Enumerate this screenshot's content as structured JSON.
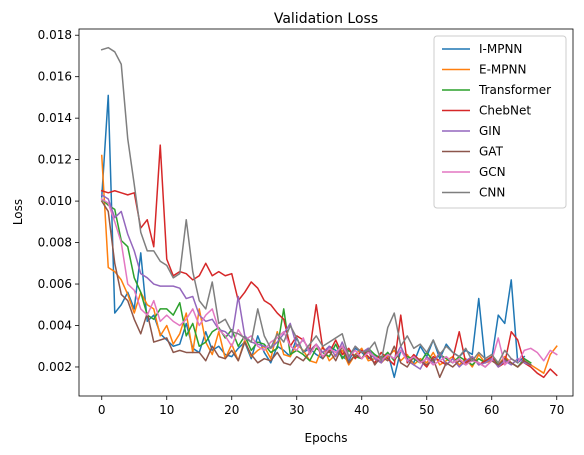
{
  "chart_data": {
    "type": "line",
    "title": "Validation Loss",
    "xlabel": "Epochs",
    "ylabel": "Loss",
    "xlim": [
      -3.5,
      72.5
    ],
    "ylim": [
      0.0006,
      0.0183
    ],
    "xticks": [
      0,
      10,
      20,
      30,
      40,
      50,
      60,
      70
    ],
    "yticks": [
      0.002,
      0.004,
      0.006,
      0.008,
      0.01,
      0.012,
      0.014,
      0.016,
      0.018
    ],
    "ytick_labels": [
      "0.002",
      "0.004",
      "0.006",
      "0.008",
      "0.010",
      "0.012",
      "0.014",
      "0.016",
      "0.018"
    ],
    "grid": false,
    "legend": "top-right",
    "series": [
      {
        "name": "I-MPNN",
        "color": "#1f77b4",
        "values": [
          0.0102,
          0.0151,
          0.0046,
          0.005,
          0.0056,
          0.0048,
          0.0075,
          0.0042,
          0.0045,
          0.0036,
          0.0033,
          0.003,
          0.0031,
          0.0041,
          0.0029,
          0.0027,
          0.0037,
          0.0028,
          0.003,
          0.0026,
          0.0025,
          0.0029,
          0.0032,
          0.0024,
          0.0035,
          0.0027,
          0.0022,
          0.003,
          0.0028,
          0.0025,
          0.0034,
          0.0027,
          0.0029,
          0.0026,
          0.0024,
          0.003,
          0.0028,
          0.0025,
          0.0023,
          0.0029,
          0.0027,
          0.0024,
          0.0026,
          0.0022,
          0.0027,
          0.0015,
          0.0028,
          0.0024,
          0.0022,
          0.003,
          0.0025,
          0.0033,
          0.0024,
          0.0031,
          0.0027,
          0.0025,
          0.0028,
          0.0026,
          0.0053,
          0.0022,
          0.0024,
          0.0045,
          0.0041,
          0.0062,
          0.0022,
          0.0025
        ]
      },
      {
        "name": "E-MPNN",
        "color": "#ff7f0e",
        "values": [
          0.0122,
          0.0068,
          0.0066,
          0.0062,
          0.0055,
          0.0046,
          0.0056,
          0.005,
          0.0048,
          0.0035,
          0.004,
          0.0031,
          0.0036,
          0.0046,
          0.0027,
          0.0048,
          0.0032,
          0.0026,
          0.0037,
          0.0024,
          0.0031,
          0.0023,
          0.0033,
          0.0025,
          0.0028,
          0.003,
          0.0024,
          0.0037,
          0.0026,
          0.0025,
          0.0031,
          0.0028,
          0.0023,
          0.0022,
          0.003,
          0.0023,
          0.0026,
          0.0028,
          0.0021,
          0.0026,
          0.0029,
          0.0023,
          0.0024,
          0.0022,
          0.0025,
          0.0028,
          0.0023,
          0.0026,
          0.0021,
          0.0024,
          0.0022,
          0.0027,
          0.0021,
          0.0023,
          0.0025,
          0.0021,
          0.0024,
          0.002,
          0.0026,
          0.0022,
          0.0023,
          0.0021,
          0.0025,
          0.0022,
          0.002,
          0.0023,
          0.0021,
          0.0019,
          0.0017,
          0.0026,
          0.003
        ]
      },
      {
        "name": "Transformer",
        "color": "#2ca02c",
        "values": [
          0.0101,
          0.0098,
          0.0096,
          0.0081,
          0.0078,
          0.0063,
          0.0056,
          0.0045,
          0.0043,
          0.0048,
          0.0048,
          0.0045,
          0.0051,
          0.0035,
          0.0041,
          0.003,
          0.0032,
          0.0037,
          0.0039,
          0.0034,
          0.0038,
          0.003,
          0.0035,
          0.0028,
          0.0032,
          0.0031,
          0.0027,
          0.0029,
          0.0048,
          0.0026,
          0.0028,
          0.0026,
          0.0023,
          0.0029,
          0.0027,
          0.0025,
          0.0031,
          0.0024,
          0.0028,
          0.0025,
          0.0024,
          0.0029,
          0.0026,
          0.0024,
          0.0027,
          0.0023,
          0.0028,
          0.0025,
          0.0024,
          0.0022,
          0.0027,
          0.0023,
          0.0026,
          0.0024,
          0.0022,
          0.0025,
          0.0023,
          0.0021,
          0.0024,
          0.0022,
          0.0025,
          0.0021,
          0.0023,
          0.0022,
          0.002,
          0.0024,
          0.0022
        ]
      },
      {
        "name": "ChebNet",
        "color": "#d62728",
        "values": [
          0.0105,
          0.0104,
          0.0105,
          0.0104,
          0.0103,
          0.0104,
          0.0087,
          0.0091,
          0.0078,
          0.0127,
          0.0072,
          0.0064,
          0.0066,
          0.0065,
          0.0062,
          0.0064,
          0.007,
          0.0064,
          0.0066,
          0.0064,
          0.0065,
          0.0052,
          0.0056,
          0.0061,
          0.0058,
          0.0052,
          0.005,
          0.0046,
          0.0043,
          0.003,
          0.0035,
          0.0033,
          0.0028,
          0.005,
          0.0029,
          0.0027,
          0.0033,
          0.0026,
          0.0029,
          0.0024,
          0.0028,
          0.0025,
          0.0022,
          0.0027,
          0.0024,
          0.0021,
          0.0045,
          0.0022,
          0.0026,
          0.0023,
          0.002,
          0.0025,
          0.0023,
          0.0021,
          0.0024,
          0.0037,
          0.0022,
          0.0025,
          0.0021,
          0.0023,
          0.0025,
          0.002,
          0.0022,
          0.0037,
          0.0033,
          0.0022,
          0.002,
          0.0017,
          0.0015,
          0.0019,
          0.0016
        ]
      },
      {
        "name": "GIN",
        "color": "#9467bd",
        "values": [
          0.0103,
          0.0101,
          0.0092,
          0.0095,
          0.0084,
          0.0076,
          0.0065,
          0.0063,
          0.006,
          0.0059,
          0.0059,
          0.0059,
          0.0058,
          0.0053,
          0.0054,
          0.0045,
          0.0042,
          0.0043,
          0.0038,
          0.0037,
          0.0034,
          0.0054,
          0.0035,
          0.0032,
          0.0031,
          0.003,
          0.0029,
          0.0032,
          0.0036,
          0.0041,
          0.003,
          0.0033,
          0.0028,
          0.0031,
          0.0027,
          0.003,
          0.0025,
          0.0032,
          0.0024,
          0.003,
          0.0027,
          0.0029,
          0.0024,
          0.0022,
          0.0026,
          0.0024,
          0.003,
          0.0023,
          0.0021,
          0.0019,
          0.0025,
          0.0022,
          0.0027,
          0.0021,
          0.0024,
          0.002,
          0.0023,
          0.0025,
          0.0021,
          0.0022,
          0.0024,
          0.002,
          0.0023,
          0.0021,
          0.0024,
          0.0022,
          0.0021
        ]
      },
      {
        "name": "GAT",
        "color": "#8c564b",
        "values": [
          0.01,
          0.0095,
          0.007,
          0.0055,
          0.0052,
          0.0043,
          0.0036,
          0.0046,
          0.0032,
          0.0033,
          0.0034,
          0.0027,
          0.0028,
          0.0027,
          0.0027,
          0.0027,
          0.0023,
          0.003,
          0.0025,
          0.0024,
          0.0028,
          0.0023,
          0.0032,
          0.0026,
          0.0022,
          0.0024,
          0.0023,
          0.0027,
          0.0022,
          0.0021,
          0.0025,
          0.0023,
          0.0027,
          0.0031,
          0.0024,
          0.0028,
          0.0023,
          0.003,
          0.0022,
          0.0026,
          0.0024,
          0.0028,
          0.0021,
          0.0025,
          0.0023,
          0.003,
          0.0022,
          0.002,
          0.0025,
          0.0023,
          0.0021,
          0.0024,
          0.0015,
          0.0022,
          0.002,
          0.0023,
          0.0021,
          0.0024,
          0.0022,
          0.002,
          0.0023,
          0.0021,
          0.0024,
          0.0022,
          0.002,
          0.0023,
          0.0021
        ]
      },
      {
        "name": "GCN",
        "color": "#e377c2",
        "values": [
          0.0101,
          0.0099,
          0.009,
          0.008,
          0.006,
          0.0057,
          0.0048,
          0.0045,
          0.0052,
          0.0042,
          0.0045,
          0.0042,
          0.004,
          0.0043,
          0.0048,
          0.004,
          0.0045,
          0.0048,
          0.0038,
          0.0035,
          0.003,
          0.0038,
          0.0033,
          0.0035,
          0.003,
          0.0028,
          0.0032,
          0.0034,
          0.0037,
          0.003,
          0.0028,
          0.0034,
          0.0026,
          0.0031,
          0.0025,
          0.0029,
          0.0027,
          0.003,
          0.0025,
          0.0028,
          0.0024,
          0.0027,
          0.0025,
          0.0023,
          0.0026,
          0.0024,
          0.0028,
          0.0023,
          0.0025,
          0.0022,
          0.0024,
          0.0021,
          0.0023,
          0.0025,
          0.0022,
          0.0024,
          0.0021,
          0.0023,
          0.0022,
          0.002,
          0.0023,
          0.0034,
          0.0021,
          0.0024,
          0.0022,
          0.0028,
          0.0029,
          0.0027,
          0.0023,
          0.0028,
          0.0026
        ]
      },
      {
        "name": "CNN",
        "color": "#7f7f7f",
        "values": [
          0.0173,
          0.0174,
          0.0172,
          0.0166,
          0.013,
          0.0108,
          0.0085,
          0.0076,
          0.0076,
          0.0071,
          0.0069,
          0.0063,
          0.0065,
          0.0091,
          0.0066,
          0.0052,
          0.0048,
          0.0061,
          0.0041,
          0.0043,
          0.0037,
          0.0036,
          0.0034,
          0.0032,
          0.0048,
          0.0035,
          0.0029,
          0.0036,
          0.0032,
          0.004,
          0.0034,
          0.0027,
          0.0031,
          0.0035,
          0.003,
          0.0032,
          0.0034,
          0.0036,
          0.0025,
          0.003,
          0.0027,
          0.0028,
          0.0032,
          0.0023,
          0.0039,
          0.0046,
          0.003,
          0.0035,
          0.0029,
          0.0031,
          0.0027,
          0.0033,
          0.0026,
          0.003,
          0.0027,
          0.0025,
          0.0029,
          0.0023,
          0.0027,
          0.0024,
          0.0026,
          0.0022,
          0.0028,
          0.0024,
          0.0022
        ]
      }
    ]
  }
}
